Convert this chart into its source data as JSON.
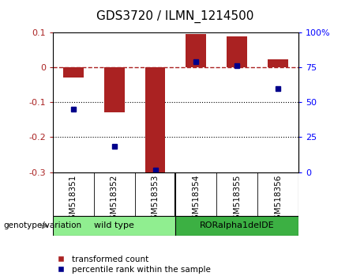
{
  "title": "GDS3720 / ILMN_1214500",
  "categories": [
    "GSM518351",
    "GSM518352",
    "GSM518353",
    "GSM518354",
    "GSM518355",
    "GSM518356"
  ],
  "red_bars": [
    -0.03,
    -0.13,
    -0.3,
    0.095,
    0.088,
    0.022
  ],
  "blue_dots_y_left": [
    -0.12,
    -0.225,
    -0.295,
    0.015,
    0.005,
    -0.06
  ],
  "blue_dots_x": [
    0,
    1,
    2,
    3,
    4,
    5
  ],
  "ylim": [
    -0.3,
    0.1
  ],
  "right_ylim": [
    0,
    100
  ],
  "right_yticks": [
    0,
    25,
    50,
    75,
    100
  ],
  "right_yticklabels": [
    "0",
    "25",
    "50",
    "75",
    "100%"
  ],
  "left_yticks": [
    -0.3,
    -0.2,
    -0.1,
    0.0,
    0.1
  ],
  "left_yticklabels": [
    "-0.3",
    "-0.2",
    "-0.1",
    "0",
    "0.1"
  ],
  "hline_y": 0.0,
  "dotted_hlines": [
    -0.1,
    -0.2
  ],
  "group1_label": "wild type",
  "group2_label": "RORalpha1delDE",
  "group1_color": "#90EE90",
  "group2_color": "#3CB043",
  "genotype_label": "genotype/variation",
  "legend_red": "transformed count",
  "legend_blue": "percentile rank within the sample",
  "bar_color": "#AA2222",
  "dot_color": "#00008B",
  "bar_width": 0.5,
  "tick_area_color": "#C8C8C8",
  "title_fontsize": 11,
  "axis_fontsize": 8,
  "tick_fontsize": 8,
  "legend_fontsize": 7.5
}
